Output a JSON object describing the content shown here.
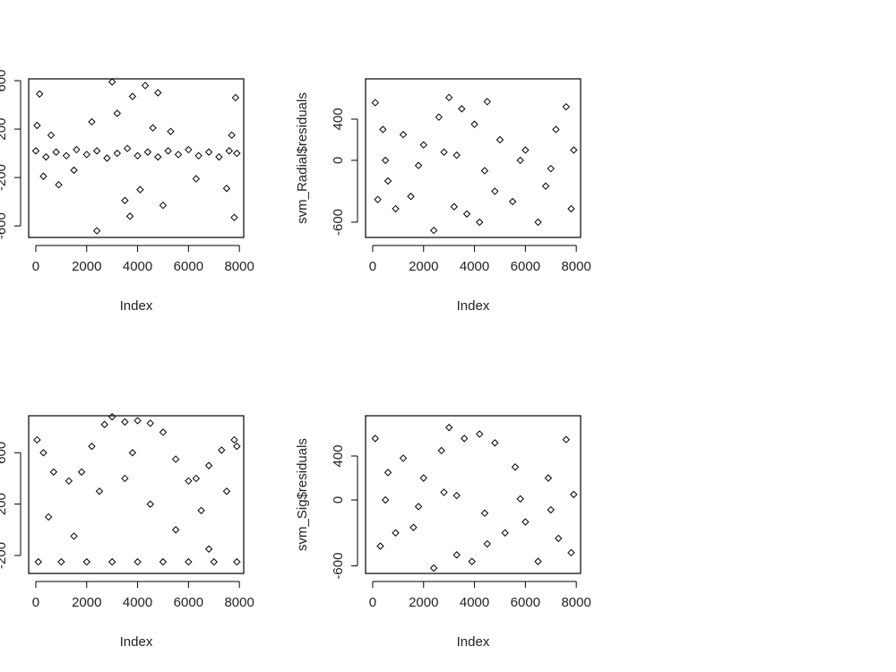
{
  "chart_data": [
    {
      "type": "scatter",
      "color": "#000000",
      "xlabel": "Index",
      "xlim": [
        -280,
        8170
      ],
      "ylim": [
        -695,
        615
      ],
      "xticks": [
        0,
        2000,
        4000,
        6000,
        8000
      ],
      "yticks": [
        -600,
        -200,
        200,
        600
      ],
      "x": [
        0,
        400,
        800,
        1200,
        1600,
        2000,
        2400,
        2800,
        3200,
        3600,
        4000,
        4400,
        4800,
        5200,
        5600,
        6000,
        6400,
        6800,
        7200,
        7600,
        7900,
        50,
        150,
        300,
        600,
        900,
        1500,
        2200,
        2400,
        3000,
        3200,
        3500,
        3700,
        3800,
        4100,
        4300,
        4600,
        4800,
        5000,
        5300,
        6300,
        7500,
        7800,
        7850,
        7700
      ],
      "y": [
        20,
        -30,
        10,
        -20,
        30,
        -10,
        20,
        -40,
        0,
        40,
        -20,
        10,
        -30,
        20,
        -10,
        30,
        -20,
        10,
        -30,
        20,
        0,
        230,
        490,
        -190,
        150,
        -260,
        -140,
        260,
        -640,
        590,
        330,
        -390,
        -520,
        470,
        -300,
        560,
        210,
        500,
        -430,
        180,
        -210,
        -290,
        -530,
        460,
        150
      ]
    },
    {
      "type": "scatter",
      "color": "#000000",
      "xlabel": "Index",
      "ylabel": "svm_Radial$residuals",
      "xlim": [
        -280,
        8170
      ],
      "ylim": [
        -748,
        791
      ],
      "xticks": [
        0,
        2000,
        4000,
        6000,
        8000
      ],
      "yticks": [
        -600,
        0,
        400
      ],
      "x": [
        100,
        200,
        400,
        600,
        900,
        1200,
        1500,
        2000,
        2400,
        2600,
        3000,
        3200,
        3500,
        3700,
        4000,
        4200,
        4500,
        4800,
        5000,
        5500,
        6000,
        6500,
        6800,
        7200,
        7600,
        7800,
        7900,
        500,
        1800,
        3300,
        5800,
        7000,
        4400,
        2800
      ],
      "y": [
        560,
        -380,
        300,
        -200,
        -470,
        250,
        -350,
        150,
        -680,
        420,
        610,
        -450,
        500,
        -520,
        350,
        -600,
        570,
        -300,
        200,
        -400,
        100,
        -600,
        -250,
        300,
        520,
        -470,
        100,
        0,
        -50,
        50,
        0,
        -80,
        -100,
        80
      ]
    },
    {
      "type": "scatter",
      "color": "#000000",
      "xlabel": "Index",
      "xlim": [
        -280,
        8170
      ],
      "ylim": [
        -340,
        888
      ],
      "xticks": [
        0,
        2000,
        4000,
        6000,
        8000
      ],
      "yticks": [
        -200,
        200,
        600
      ],
      "x": [
        50,
        300,
        700,
        1300,
        1800,
        2200,
        2700,
        3000,
        3500,
        4000,
        4500,
        5000,
        5500,
        6000,
        6300,
        6800,
        7300,
        7800,
        7900,
        100,
        1000,
        2000,
        3000,
        4000,
        5000,
        6000,
        7000,
        7900,
        500,
        1500,
        2500,
        3500,
        4500,
        5500,
        6500,
        7500,
        3800,
        6800
      ],
      "y": [
        700,
        600,
        450,
        380,
        450,
        650,
        820,
        880,
        840,
        850,
        830,
        760,
        550,
        380,
        400,
        500,
        620,
        700,
        650,
        -250,
        -250,
        -250,
        -250,
        -250,
        -250,
        -250,
        -250,
        -250,
        100,
        -50,
        300,
        400,
        200,
        0,
        150,
        300,
        600,
        -150
      ]
    },
    {
      "type": "scatter",
      "color": "#000000",
      "xlabel": "Index",
      "ylabel": "svm_Sig$residuals",
      "xlim": [
        -280,
        8170
      ],
      "ylim": [
        -669,
        767
      ],
      "xticks": [
        0,
        2000,
        4000,
        6000,
        8000
      ],
      "yticks": [
        -600,
        0,
        400
      ],
      "x": [
        100,
        300,
        600,
        900,
        1200,
        1600,
        2000,
        2400,
        2700,
        3000,
        3300,
        3600,
        3900,
        4200,
        4500,
        4800,
        5200,
        5600,
        6000,
        6500,
        6900,
        7300,
        7600,
        7800,
        7900,
        500,
        1800,
        3300,
        5800,
        7000,
        4400,
        2800
      ],
      "y": [
        560,
        -420,
        250,
        -300,
        380,
        -250,
        200,
        -620,
        450,
        660,
        -500,
        560,
        -560,
        600,
        -400,
        520,
        -300,
        300,
        -200,
        -560,
        200,
        -350,
        550,
        -480,
        50,
        0,
        -60,
        40,
        10,
        -90,
        -120,
        70
      ]
    }
  ]
}
